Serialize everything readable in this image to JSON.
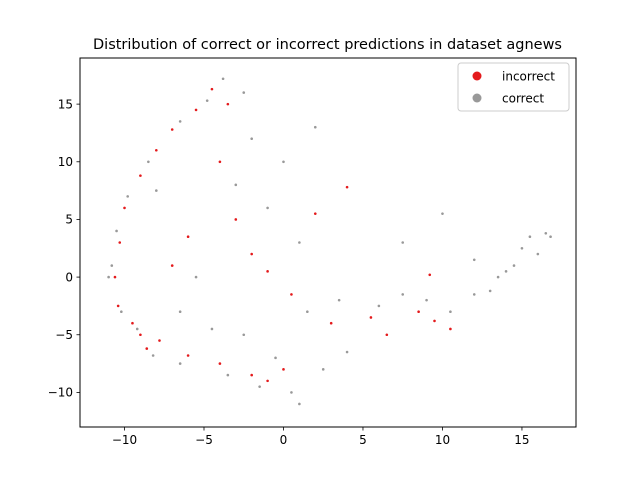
{
  "chart_data": {
    "type": "scatter",
    "title": "Distribution of correct or incorrect predictions in dataset agnews",
    "xlabel": "",
    "ylabel": "",
    "xlim": [
      -12.8,
      18.4
    ],
    "ylim": [
      -13,
      19
    ],
    "x_ticks": [
      -10,
      -5,
      0,
      5,
      10,
      15
    ],
    "y_ticks": [
      -10,
      -5,
      0,
      5,
      10,
      15
    ],
    "grid": false,
    "legend_position": "top-right",
    "series": [
      {
        "name": "incorrect",
        "color": "#e41a1c",
        "values": [
          [
            -4.5,
            16.3
          ],
          [
            -3.5,
            15.0
          ],
          [
            -5.5,
            14.5
          ],
          [
            -7.0,
            12.8
          ],
          [
            -8.0,
            11.0
          ],
          [
            -9.0,
            8.8
          ],
          [
            -10.0,
            6.0
          ],
          [
            -10.3,
            3.0
          ],
          [
            -10.6,
            0.0
          ],
          [
            -10.4,
            -2.5
          ],
          [
            -9.5,
            -4.0
          ],
          [
            -9.0,
            -5.0
          ],
          [
            -8.6,
            -6.2
          ],
          [
            -7.8,
            -5.5
          ],
          [
            -6.0,
            -6.8
          ],
          [
            -4.0,
            -7.5
          ],
          [
            -2.0,
            -8.5
          ],
          [
            -1.0,
            -9.0
          ],
          [
            0.0,
            -8.0
          ],
          [
            -3.0,
            5.0
          ],
          [
            -2.0,
            2.0
          ],
          [
            -1.0,
            0.5
          ],
          [
            0.5,
            -1.5
          ],
          [
            3.0,
            -4.0
          ],
          [
            5.5,
            -3.5
          ],
          [
            6.5,
            -5.0
          ],
          [
            8.5,
            -3.0
          ],
          [
            9.5,
            -3.8
          ],
          [
            9.2,
            0.2
          ],
          [
            10.5,
            -4.5
          ],
          [
            2.0,
            5.5
          ],
          [
            4.0,
            7.8
          ],
          [
            -6.0,
            3.5
          ],
          [
            -7.0,
            1.0
          ],
          [
            -4.0,
            10.0
          ]
        ]
      },
      {
        "name": "correct",
        "color": "#999999",
        "values": [
          [
            -3.8,
            17.2
          ],
          [
            -2.5,
            16.0
          ],
          [
            -4.8,
            15.3
          ],
          [
            -6.5,
            13.5
          ],
          [
            -8.5,
            10.0
          ],
          [
            -9.8,
            7.0
          ],
          [
            -10.5,
            4.0
          ],
          [
            -10.8,
            1.0
          ],
          [
            -10.2,
            -3.0
          ],
          [
            -9.2,
            -4.5
          ],
          [
            -8.2,
            -6.8
          ],
          [
            -6.5,
            -7.5
          ],
          [
            -3.5,
            -8.5
          ],
          [
            -1.5,
            -9.5
          ],
          [
            0.5,
            -10.0
          ],
          [
            1.0,
            -11.0
          ],
          [
            -0.5,
            -7.0
          ],
          [
            1.5,
            -3.0
          ],
          [
            3.5,
            -2.0
          ],
          [
            6.0,
            -2.5
          ],
          [
            7.5,
            -1.5
          ],
          [
            9.0,
            -2.0
          ],
          [
            10.5,
            -3.0
          ],
          [
            12.0,
            -1.5
          ],
          [
            13.0,
            -1.2
          ],
          [
            14.0,
            0.5
          ],
          [
            15.0,
            2.5
          ],
          [
            15.5,
            3.5
          ],
          [
            16.0,
            2.0
          ],
          [
            16.5,
            3.8
          ],
          [
            14.5,
            1.0
          ],
          [
            13.5,
            0.0
          ],
          [
            -2.0,
            12.0
          ],
          [
            -3.0,
            8.0
          ],
          [
            -1.0,
            6.0
          ],
          [
            1.0,
            3.0
          ],
          [
            2.0,
            13.0
          ],
          [
            7.5,
            3.0
          ],
          [
            10.0,
            5.5
          ],
          [
            12.0,
            1.5
          ],
          [
            -5.5,
            0.0
          ],
          [
            -6.5,
            -3.0
          ],
          [
            -4.5,
            -4.5
          ],
          [
            0.0,
            10.0
          ],
          [
            -8.0,
            7.5
          ],
          [
            4.0,
            -6.5
          ],
          [
            2.5,
            -8.0
          ],
          [
            -2.5,
            -5.0
          ],
          [
            -11.0,
            0.0
          ],
          [
            16.8,
            3.5
          ]
        ]
      }
    ]
  }
}
